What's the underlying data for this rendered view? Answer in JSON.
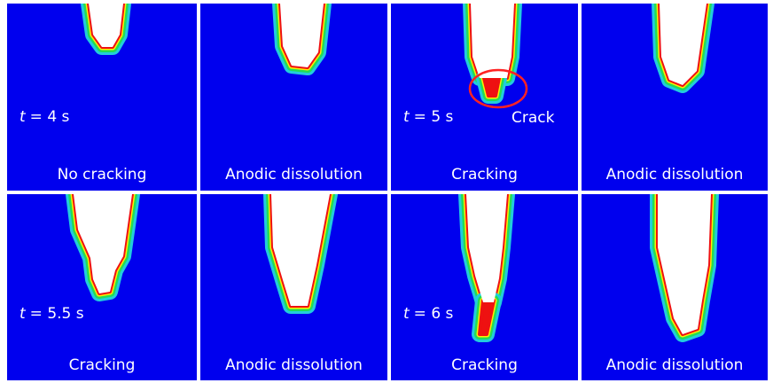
{
  "panels": [
    {
      "time_var": "t",
      "time_text": "= 4 s",
      "caption": "No cracking"
    },
    {
      "caption": "Anodic dissolution"
    },
    {
      "time_var": "t",
      "time_text": "= 5 s",
      "caption": "Cracking",
      "annotation": "Crack"
    },
    {
      "caption": "Anodic dissolution"
    },
    {
      "time_var": "t",
      "time_text": "= 5.5 s",
      "caption": "Cracking"
    },
    {
      "caption": "Anodic dissolution"
    },
    {
      "time_var": "t",
      "time_text": "= 6 s",
      "caption": "Cracking"
    },
    {
      "caption": "Anodic dissolution"
    }
  ]
}
